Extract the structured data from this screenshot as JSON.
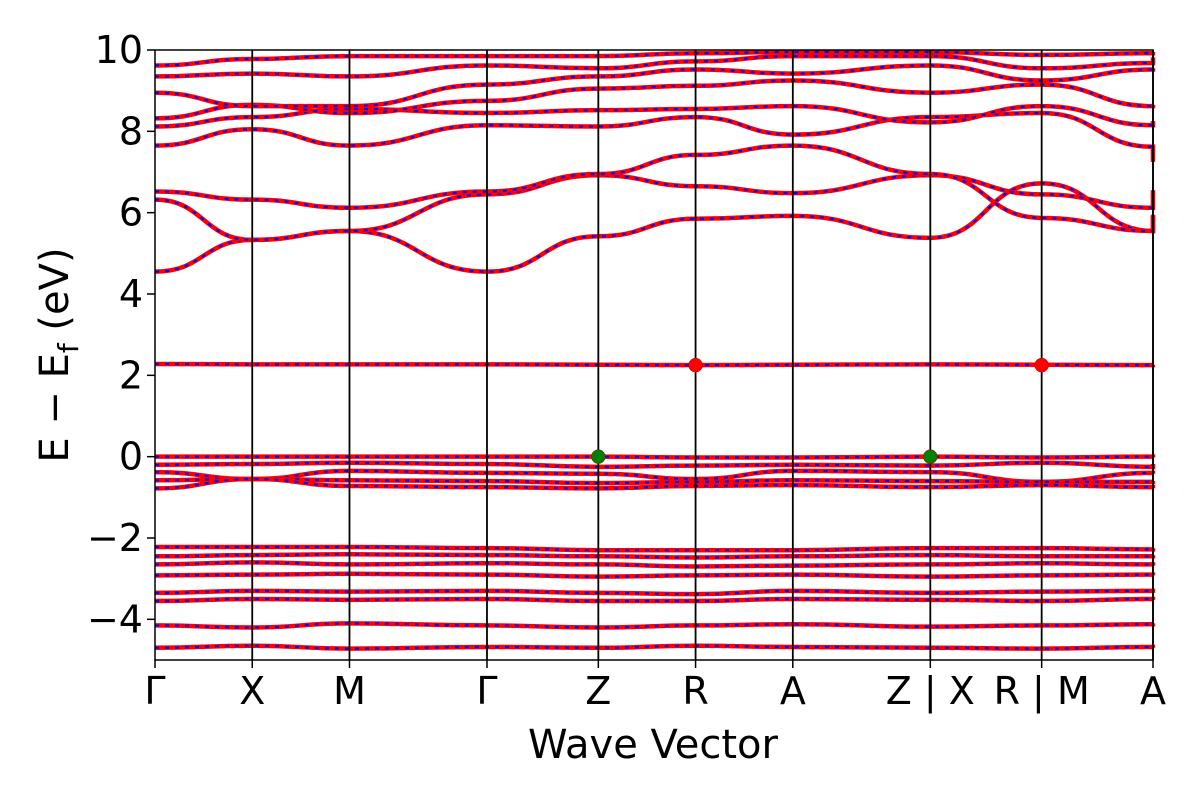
{
  "chart_data": {
    "type": "line",
    "title": "",
    "xlabel": "Wave Vector",
    "ylabel_main": "E − E",
    "ylabel_sub": "f",
    "ylabel_unit": " (eV)",
    "ylim": [
      -5,
      10
    ],
    "yticks": [
      {
        "value": 10,
        "label": "10"
      },
      {
        "value": 8,
        "label": "8"
      },
      {
        "value": 6,
        "label": "6"
      },
      {
        "value": 4,
        "label": "4"
      },
      {
        "value": 2,
        "label": "2"
      },
      {
        "value": 0,
        "label": "0"
      },
      {
        "value": -2,
        "label": "−2"
      },
      {
        "value": -4,
        "label": "−4"
      }
    ],
    "kpoints": [
      {
        "label": "Γ",
        "x": 0.0
      },
      {
        "label": "X",
        "x": 1.0
      },
      {
        "label": "M",
        "x": 2.0
      },
      {
        "label": "Γ",
        "x": 3.414
      },
      {
        "label": "Z",
        "x": 4.559
      },
      {
        "label": "R",
        "x": 5.559
      },
      {
        "label": "A",
        "x": 6.559
      },
      {
        "label": "Z | X",
        "x": 7.973
      },
      {
        "label": "R | M",
        "x": 9.118
      },
      {
        "label": "A",
        "x": 10.263
      }
    ],
    "xlim": [
      0.0,
      10.263
    ],
    "grid": false,
    "colors": {
      "band": "#ff0000",
      "projection": "#0000ff",
      "vbm": "#008000",
      "cbm": "#ff0000"
    },
    "markers": [
      {
        "name": "VBM",
        "x": 4.559,
        "y": 0.0,
        "color": "#008000"
      },
      {
        "name": "VBM",
        "x": 7.973,
        "y": 0.0,
        "color": "#008000"
      },
      {
        "name": "CBM",
        "x": 5.559,
        "y": 2.25,
        "color": "#ff0000"
      },
      {
        "name": "CBM",
        "x": 9.118,
        "y": 2.25,
        "color": "#ff0000"
      }
    ],
    "series": [
      {
        "y": [
          4.55,
          5.33,
          5.55,
          4.55,
          5.42,
          5.85,
          5.92,
          5.38,
          6.72,
          5.55,
          5.95
        ]
      },
      {
        "y": [
          6.32,
          5.33,
          5.55,
          6.45,
          6.92,
          6.65,
          6.48,
          6.92,
          6.45,
          6.12,
          6.55
        ]
      },
      {
        "y": [
          6.52,
          6.32,
          6.12,
          6.52,
          6.95,
          7.42,
          7.65,
          6.95,
          5.87,
          5.55,
          5.92
        ]
      },
      {
        "y": [
          7.65,
          8.05,
          7.65,
          8.15,
          8.12,
          8.35,
          7.92,
          8.35,
          8.45,
          7.62,
          7.25
        ]
      },
      {
        "y": [
          8.12,
          8.35,
          8.55,
          8.45,
          8.52,
          8.55,
          8.62,
          8.22,
          8.62,
          8.15,
          8.25
        ]
      },
      {
        "y": [
          8.32,
          8.65,
          8.45,
          8.75,
          9.05,
          9.12,
          9.25,
          8.95,
          9.15,
          8.62,
          8.65
        ]
      },
      {
        "y": [
          8.95,
          8.62,
          8.62,
          9.15,
          9.35,
          9.52,
          9.42,
          9.62,
          9.25,
          9.52,
          9.55
        ]
      },
      {
        "y": [
          9.35,
          9.42,
          9.35,
          9.62,
          9.55,
          9.72,
          9.85,
          9.85,
          9.55,
          9.68,
          9.82
        ]
      },
      {
        "y": [
          9.62,
          9.78,
          9.85,
          9.85,
          9.85,
          9.92,
          9.95,
          9.95,
          9.88,
          9.92,
          9.95
        ]
      },
      {
        "y": [
          2.28,
          2.27,
          2.27,
          2.27,
          2.26,
          2.25,
          2.26,
          2.27,
          2.26,
          2.25,
          2.26
        ]
      },
      {
        "y": [
          0.0,
          0.0,
          0.0,
          0.0,
          0.0,
          -0.02,
          -0.02,
          0.0,
          -0.02,
          0.0,
          -0.02
        ]
      },
      {
        "y": [
          -0.2,
          -0.18,
          -0.15,
          -0.18,
          -0.25,
          -0.22,
          -0.2,
          -0.22,
          -0.15,
          -0.25,
          -0.18
        ]
      },
      {
        "y": [
          -0.38,
          -0.55,
          -0.35,
          -0.4,
          -0.42,
          -0.55,
          -0.35,
          -0.38,
          -0.62,
          -0.4,
          -0.42
        ]
      },
      {
        "y": [
          -0.58,
          -0.55,
          -0.58,
          -0.6,
          -0.65,
          -0.62,
          -0.58,
          -0.6,
          -0.62,
          -0.62,
          -0.6
        ]
      },
      {
        "y": [
          -0.78,
          -0.55,
          -0.72,
          -0.75,
          -0.78,
          -0.72,
          -0.7,
          -0.75,
          -0.7,
          -0.75,
          -0.78
        ]
      },
      {
        "y": [
          -2.22,
          -2.22,
          -2.22,
          -2.25,
          -2.3,
          -2.3,
          -2.3,
          -2.25,
          -2.25,
          -2.28,
          -2.25
        ]
      },
      {
        "y": [
          -2.45,
          -2.42,
          -2.4,
          -2.42,
          -2.45,
          -2.48,
          -2.45,
          -2.42,
          -2.45,
          -2.45,
          -2.42
        ]
      },
      {
        "y": [
          -2.65,
          -2.6,
          -2.65,
          -2.62,
          -2.65,
          -2.7,
          -2.68,
          -2.65,
          -2.62,
          -2.65,
          -2.68
        ]
      },
      {
        "y": [
          -2.92,
          -2.9,
          -2.88,
          -2.9,
          -2.95,
          -2.92,
          -2.9,
          -2.95,
          -2.92,
          -2.9,
          -2.92
        ]
      },
      {
        "y": [
          -3.35,
          -3.3,
          -3.32,
          -3.3,
          -3.35,
          -3.38,
          -3.3,
          -3.35,
          -3.32,
          -3.3,
          -3.35
        ]
      },
      {
        "y": [
          -3.55,
          -3.5,
          -3.52,
          -3.5,
          -3.55,
          -3.55,
          -3.5,
          -3.52,
          -3.55,
          -3.5,
          -3.52
        ]
      },
      {
        "y": [
          -4.15,
          -4.2,
          -4.1,
          -4.15,
          -4.2,
          -4.15,
          -4.12,
          -4.18,
          -4.15,
          -4.12,
          -4.1
        ]
      },
      {
        "y": [
          -4.7,
          -4.65,
          -4.72,
          -4.68,
          -4.7,
          -4.65,
          -4.68,
          -4.7,
          -4.72,
          -4.68,
          -4.7
        ]
      }
    ]
  }
}
